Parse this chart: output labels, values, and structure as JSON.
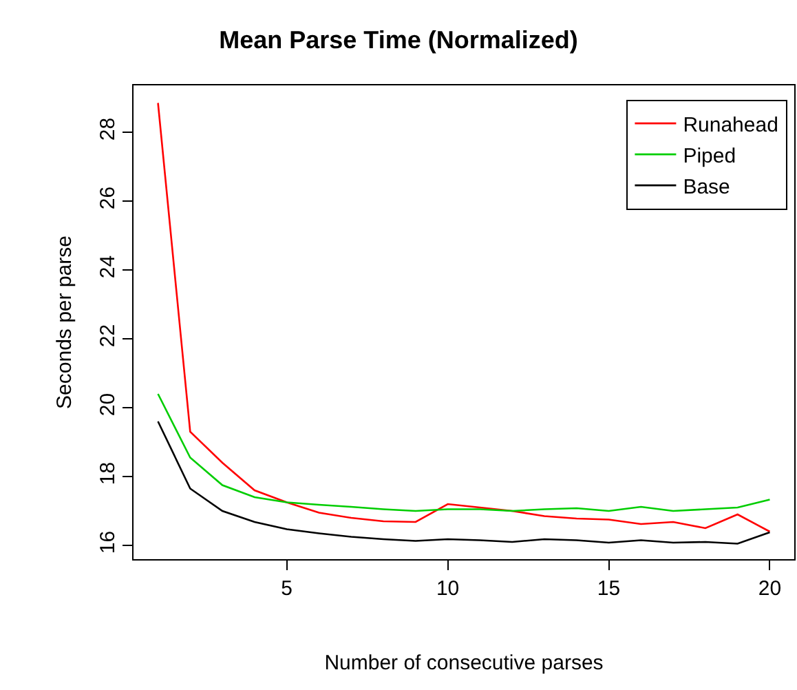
{
  "chart_data": {
    "type": "line",
    "title": "Mean Parse Time (Normalized)",
    "xlabel": "Number of consecutive parses",
    "ylabel": "Seconds per parse",
    "x": [
      1,
      2,
      3,
      4,
      5,
      6,
      7,
      8,
      9,
      10,
      11,
      12,
      13,
      14,
      15,
      16,
      17,
      18,
      19,
      20
    ],
    "series": [
      {
        "name": "Runahead",
        "color": "#ff0000",
        "values": [
          28.85,
          19.3,
          18.4,
          17.6,
          17.25,
          16.95,
          16.8,
          16.7,
          16.68,
          17.2,
          17.1,
          17.0,
          16.85,
          16.78,
          16.75,
          16.62,
          16.68,
          16.5,
          16.9,
          16.4
        ]
      },
      {
        "name": "Piped",
        "color": "#00cd00",
        "values": [
          20.4,
          18.55,
          17.75,
          17.4,
          17.25,
          17.18,
          17.12,
          17.05,
          17.0,
          17.05,
          17.05,
          17.0,
          17.05,
          17.08,
          17.0,
          17.12,
          17.0,
          17.05,
          17.1,
          17.33
        ]
      },
      {
        "name": "Base",
        "color": "#000000",
        "values": [
          19.6,
          17.65,
          17.0,
          16.68,
          16.47,
          16.35,
          16.25,
          16.18,
          16.13,
          16.18,
          16.15,
          16.1,
          16.18,
          16.15,
          16.08,
          16.15,
          16.08,
          16.1,
          16.05,
          16.38
        ]
      }
    ],
    "xlim": [
      0.24,
      20.76
    ],
    "xticks": [
      5,
      10,
      15,
      20
    ],
    "ylim": [
      15.6,
      29.36
    ],
    "yticks": [
      16,
      18,
      20,
      22,
      24,
      26,
      28
    ],
    "legend": "top right",
    "marker": "none",
    "line_style": "solid"
  }
}
